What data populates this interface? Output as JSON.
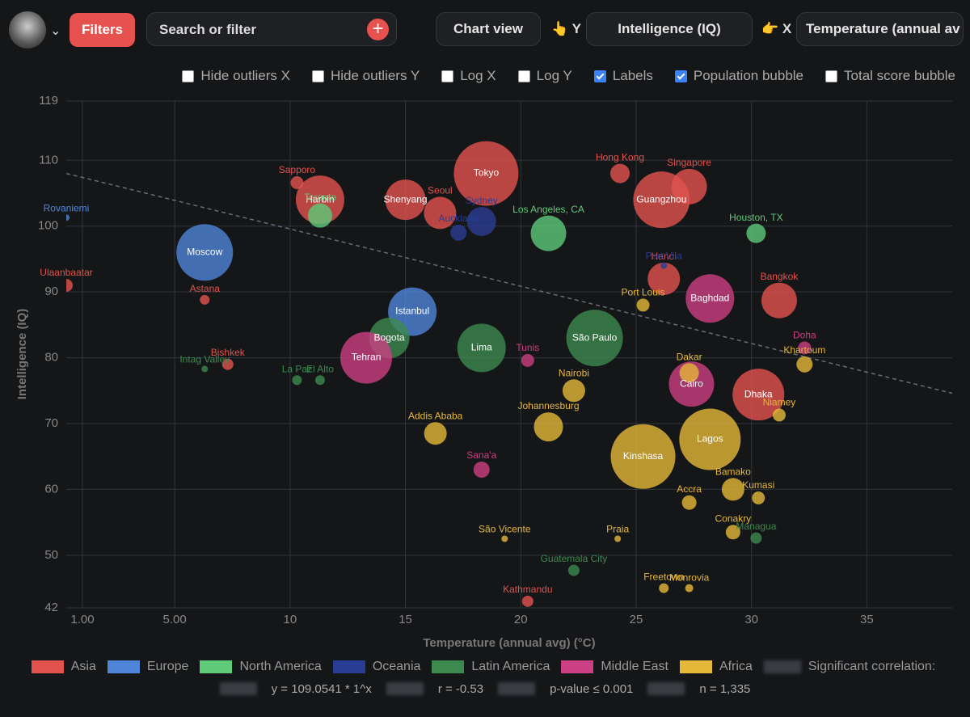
{
  "toolbar": {
    "filters": "Filters",
    "search_placeholder": "Search or filter",
    "chart_view": "Chart view",
    "y_label": "👆 Y",
    "y_field": "Intelligence (IQ)",
    "x_label": "👉 X",
    "x_field": "Temperature (annual av"
  },
  "options": [
    {
      "label": "Hide outliers X",
      "checked": false
    },
    {
      "label": "Hide outliers Y",
      "checked": false
    },
    {
      "label": "Log X",
      "checked": false
    },
    {
      "label": "Log Y",
      "checked": false
    },
    {
      "label": "Labels",
      "checked": true
    },
    {
      "label": "Population bubble",
      "checked": true
    },
    {
      "label": "Total score bubble",
      "checked": false
    }
  ],
  "chart_data": {
    "type": "scatter",
    "x_label": "Temperature (annual avg) (°C)",
    "y_label": "Intelligence (IQ)",
    "xlim": [
      0.3,
      38.7
    ],
    "xticks": [
      {
        "value": 1,
        "label": "1.00"
      },
      {
        "value": 5,
        "label": "5.00"
      },
      10,
      15,
      20,
      25,
      30,
      35
    ],
    "ylim": [
      42,
      119
    ],
    "yticks": [
      42,
      50,
      60,
      70,
      80,
      90,
      100,
      110,
      119
    ],
    "grid": true,
    "series": [
      {
        "name": "Asia",
        "color": "#e2534f",
        "labels": [
          "Ulaanbaatar",
          "Harbin",
          "Shenyang",
          "Seoul",
          "Tokyo",
          "Guangzhou",
          "Singapore",
          "Hong Kong",
          "Dhaka",
          "Kathmandu",
          "Bishkek",
          "Astana",
          "Sapporo",
          "Bangkok",
          "Hanoi"
        ],
        "x": [
          0.3,
          11.3,
          15,
          16.5,
          18.5,
          26.1,
          27.3,
          24.3,
          30.3,
          20.3,
          7.3,
          6.3,
          10.3,
          31.2,
          26.2
        ],
        "values": [
          91,
          104,
          104,
          102,
          108,
          104,
          106,
          108,
          74.4,
          43,
          79,
          88.8,
          106.6,
          88.7,
          92
        ],
        "sizes": [
          8,
          30,
          25,
          20,
          40,
          35,
          22,
          12,
          32,
          7,
          7,
          6,
          8,
          22,
          20
        ]
      },
      {
        "name": "Europe",
        "color": "#4f86d9",
        "labels": [
          "Moscow",
          "Istanbul",
          "Rovaniemi"
        ],
        "x": [
          6.3,
          15.3,
          0.3
        ],
        "values": [
          96,
          87,
          101.3
        ],
        "sizes": [
          35,
          30,
          4
        ]
      },
      {
        "name": "North America",
        "color": "#5dcb7a",
        "labels": [
          "Toronto",
          "Los Angeles, CA",
          "Houston, TX"
        ],
        "x": [
          11.3,
          21.2,
          30.2
        ],
        "values": [
          101.6,
          98.9,
          98.9
        ],
        "sizes": [
          15,
          22,
          12
        ]
      },
      {
        "name": "Oceania",
        "color": "#2a3d94",
        "labels": [
          "Sydney",
          "Auckland",
          "Port Vila"
        ],
        "x": [
          18.3,
          17.3,
          26.2
        ],
        "values": [
          100.7,
          99,
          94
        ],
        "sizes": [
          18,
          10,
          4
        ]
      },
      {
        "name": "Latin America",
        "color": "#3d8a4f",
        "labels": [
          "Bogota",
          "Lima",
          "São Paulo",
          "Managua",
          "Guatemala City",
          "Intag Valley",
          "La Paz",
          "El Alto"
        ],
        "x": [
          14.3,
          18.3,
          23.2,
          30.2,
          22.3,
          6.3,
          10.3,
          11.3
        ],
        "values": [
          83,
          81.5,
          83,
          52.6,
          47.7,
          78.3,
          76.6,
          76.6
        ],
        "sizes": [
          25,
          30,
          35,
          7,
          7,
          4,
          6,
          6
        ]
      },
      {
        "name": "Middle East",
        "color": "#cc3f83",
        "labels": [
          "Tehran",
          "Baghdad",
          "Cairo",
          "Sana'a",
          "Tunis",
          "Doha"
        ],
        "x": [
          13.3,
          28.2,
          27.4,
          18.3,
          20.3,
          32.3
        ],
        "values": [
          80,
          89,
          76,
          63,
          79.6,
          81.5
        ],
        "sizes": [
          32,
          30,
          28,
          10,
          8,
          8
        ]
      },
      {
        "name": "Africa",
        "color": "#e5b83a",
        "labels": [
          "Port Louis",
          "Kinshasa",
          "Lagos",
          "Khartoum",
          "Niamey",
          "São Vicente",
          "Praia",
          "Freetown",
          "Monrovia",
          "Conakry",
          "Bamako",
          "Accra",
          "Kumasi",
          "Addis Ababa",
          "Johannesburg",
          "Nairobi",
          "Dakar"
        ],
        "x": [
          25.3,
          25.3,
          28.2,
          32.3,
          31.2,
          19.3,
          24.2,
          26.2,
          27.3,
          29.2,
          29.2,
          27.3,
          30.3,
          16.3,
          21.2,
          22.3,
          27.3
        ],
        "values": [
          88,
          65,
          67.6,
          79,
          71.3,
          52.5,
          52.5,
          45,
          45,
          53.5,
          60,
          58,
          58.7,
          68.5,
          69.5,
          75,
          77.7
        ],
        "sizes": [
          8,
          40,
          38,
          10,
          8,
          4,
          4,
          6,
          5,
          9,
          14,
          9,
          8,
          14,
          18,
          14,
          12
        ]
      }
    ],
    "trendline": {
      "x": [
        0.3,
        38.7
      ],
      "y": [
        108,
        74.6
      ]
    },
    "legend_note": "Significant correlation:",
    "stats": [
      "y = 109.0541 * 1^x",
      "r = -0.53",
      "p-value ≤ 0.001",
      "n = 1,335"
    ]
  }
}
